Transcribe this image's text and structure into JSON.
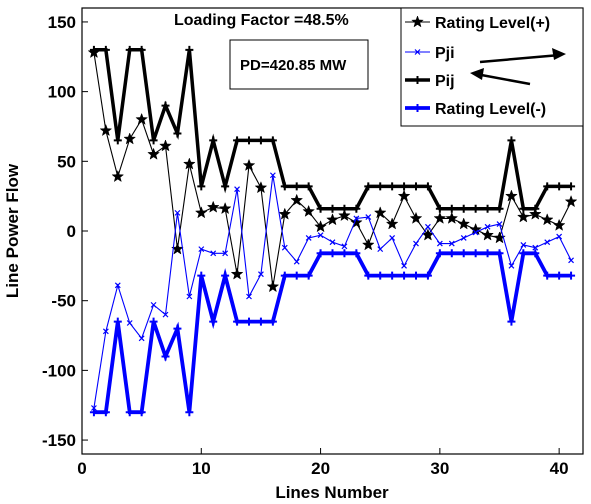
{
  "chart_data": {
    "type": "line",
    "title": "",
    "xlabel": "Lines Number",
    "ylabel": "Line Power Flow",
    "xlim": [
      0,
      42
    ],
    "ylim": [
      -160,
      160
    ],
    "xticks": [
      "0",
      "10",
      "20",
      "30",
      "40"
    ],
    "yticks": [
      "150",
      "100",
      "50",
      "0",
      "-50",
      "-100",
      "-150"
    ],
    "grid": false,
    "legend_position": "top-right",
    "annotations": {
      "loading_factor": "Loading Factor =48.5%",
      "pd": "PD=420.85 MW"
    },
    "x": [
      1,
      2,
      3,
      4,
      5,
      6,
      7,
      8,
      9,
      10,
      11,
      12,
      13,
      14,
      15,
      16,
      17,
      18,
      19,
      20,
      21,
      22,
      23,
      24,
      25,
      26,
      27,
      28,
      29,
      30,
      31,
      32,
      33,
      34,
      35,
      36,
      37,
      38,
      39,
      40,
      41
    ],
    "series": [
      {
        "name": "Rating Level(+)",
        "color": "#000000",
        "marker": "star",
        "values": [
          128,
          72,
          39,
          66,
          80,
          55,
          61,
          -13,
          48,
          13,
          17,
          16,
          -31,
          47,
          31,
          -40,
          12,
          22,
          14,
          3,
          8,
          11,
          6,
          -10,
          13,
          5,
          25,
          9,
          -3,
          9,
          9,
          5,
          1,
          -3,
          -5,
          25,
          10,
          12,
          8,
          4,
          21
        ]
      },
      {
        "name": "Pji",
        "color": "#0000ff",
        "marker": "x",
        "values": [
          -127,
          -72,
          -39,
          -66,
          -77,
          -53,
          -60,
          13,
          -47,
          -13,
          -16,
          -16,
          30,
          -47,
          -31,
          40,
          -12,
          -22,
          -5,
          -3,
          -8,
          -11,
          9,
          10,
          -13,
          -5,
          -25,
          -9,
          3,
          -9,
          -9,
          -5,
          -1,
          3,
          5,
          -25,
          -10,
          -12,
          -8,
          -4,
          -21
        ]
      },
      {
        "name": "Pij",
        "color": "#000000",
        "marker": "plus",
        "values": [
          130,
          130,
          65,
          130,
          130,
          65,
          90,
          70,
          130,
          32,
          65,
          32,
          65,
          65,
          65,
          65,
          32,
          32,
          32,
          16,
          16,
          16,
          16,
          32,
          32,
          32,
          32,
          32,
          32,
          16,
          16,
          16,
          16,
          16,
          16,
          65,
          16,
          16,
          32,
          32,
          32
        ]
      },
      {
        "name": "Rating Level(-)",
        "color": "#0000ff",
        "marker": "plus",
        "values": [
          -130,
          -130,
          -65,
          -130,
          -130,
          -65,
          -90,
          -70,
          -130,
          -32,
          -65,
          -32,
          -65,
          -65,
          -65,
          -65,
          -32,
          -32,
          -32,
          -16,
          -16,
          -16,
          -16,
          -32,
          -32,
          -32,
          -32,
          -32,
          -32,
          -16,
          -16,
          -16,
          -16,
          -16,
          -16,
          -65,
          -16,
          -16,
          -32,
          -32,
          -32
        ]
      }
    ]
  }
}
